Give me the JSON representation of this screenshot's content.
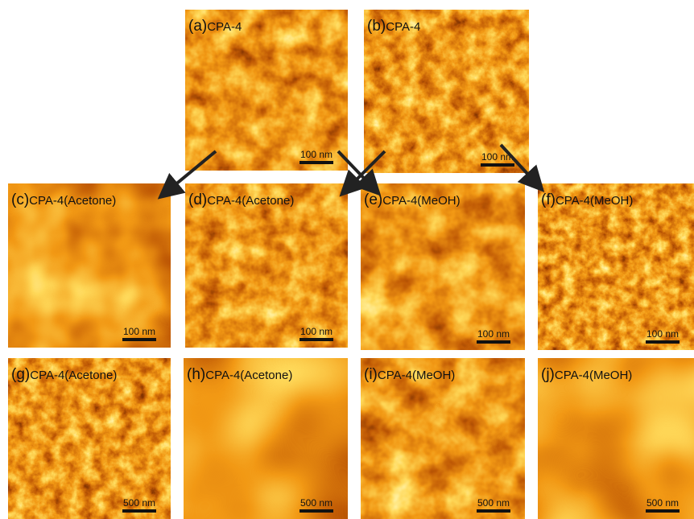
{
  "panels": [
    {
      "letter": "(a)",
      "title": "CPA-4",
      "scale": "100 nm"
    },
    {
      "letter": "(b)",
      "title": "CPA-4",
      "scale": "100 nm"
    },
    {
      "letter": "(c)",
      "title": "CPA-4(Acetone)",
      "scale": "100 nm"
    },
    {
      "letter": "(d)",
      "title": "CPA-4(Acetone)",
      "scale": "100 nm"
    },
    {
      "letter": "(e)",
      "title": "CPA-4(MeOH)",
      "scale": "100 nm"
    },
    {
      "letter": "(f)",
      "title": "CPA-4(MeOH)",
      "scale": "100 nm"
    },
    {
      "letter": "(g)",
      "title": "CPA-4(Acetone)",
      "scale": "500 nm"
    },
    {
      "letter": "(h)",
      "title": "CPA-4(Acetone)",
      "scale": "500 nm"
    },
    {
      "letter": "(i)",
      "title": "CPA-4(MeOH)",
      "scale": "500 nm"
    },
    {
      "letter": "(j)",
      "title": "CPA-4(MeOH)",
      "scale": "500 nm"
    }
  ]
}
